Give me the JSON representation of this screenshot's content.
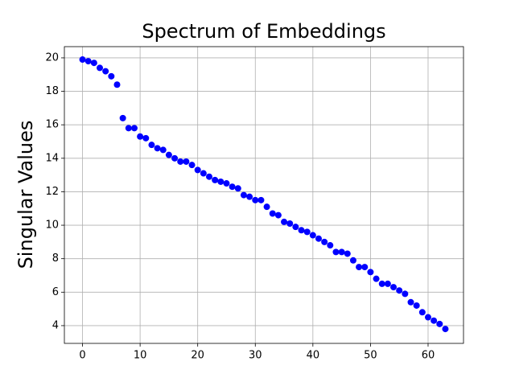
{
  "chart_data": {
    "type": "scatter",
    "title": "Spectrum of Embeddings",
    "y_label": "Singular Values",
    "color": "#0000ff",
    "grid": true,
    "x": [
      0,
      1,
      2,
      3,
      4,
      5,
      6,
      7,
      8,
      9,
      10,
      11,
      12,
      13,
      14,
      15,
      16,
      17,
      18,
      19,
      20,
      21,
      22,
      23,
      24,
      25,
      26,
      27,
      28,
      29,
      30,
      31,
      32,
      33,
      34,
      35,
      36,
      37,
      38,
      39,
      40,
      41,
      42,
      43,
      44,
      45,
      46,
      47,
      48,
      49,
      50,
      51,
      52,
      53,
      54,
      55,
      56,
      57,
      58,
      59,
      60,
      61,
      62,
      63
    ],
    "values": [
      19.9,
      19.8,
      19.7,
      19.4,
      19.2,
      18.9,
      18.4,
      16.4,
      15.8,
      15.8,
      15.3,
      15.2,
      14.8,
      14.6,
      14.5,
      14.2,
      14.0,
      13.8,
      13.8,
      13.6,
      13.3,
      13.1,
      12.9,
      12.7,
      12.6,
      12.5,
      12.3,
      12.2,
      11.8,
      11.7,
      11.5,
      11.5,
      11.1,
      10.7,
      10.6,
      10.2,
      10.1,
      9.9,
      9.7,
      9.6,
      9.4,
      9.2,
      9.0,
      8.8,
      8.4,
      8.4,
      8.3,
      7.9,
      7.5,
      7.5,
      7.2,
      6.8,
      6.5,
      6.5,
      6.3,
      6.1,
      5.9,
      5.4,
      5.2,
      4.8,
      4.5,
      4.3,
      4.1,
      3.8
    ],
    "xlim": [
      -3.15,
      66.15
    ],
    "ylim": [
      2.94,
      20.67
    ],
    "xticks": [
      0,
      10,
      20,
      30,
      40,
      50,
      60
    ],
    "yticks": [
      4,
      6,
      8,
      10,
      12,
      14,
      16,
      18,
      20
    ]
  }
}
